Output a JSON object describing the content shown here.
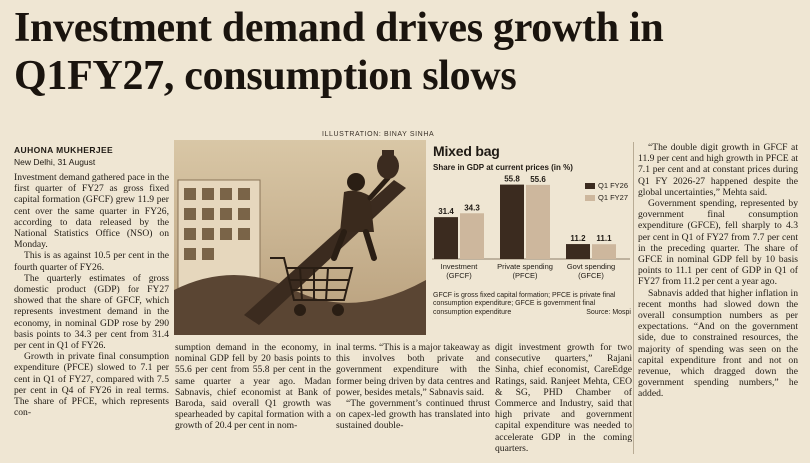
{
  "headline": "Investment demand drives growth in Q1FY27, consumption slows",
  "illustration_credit": "ILLUSTRATION: BINAY SINHA",
  "byline": {
    "author": "AUHONA MUKHERJEE",
    "dateline": "New Delhi, 31 August"
  },
  "columns": {
    "col1": [
      "Investment demand gathered pace in the first quarter of FY27 as gross fixed capital formation (GFCF) grew 11.9 per cent over the same quarter in FY26, according to data released by the National Statistics Office (NSO) on Monday.",
      "This is as against 10.5 per cent in the fourth quarter of FY26.",
      "The quarterly estimates of gross domestic product (GDP) for FY27 showed that the share of GFCF, which represents investment demand in the economy, in nominal GDP rose by 290 basis points to 34.3 per cent from 31.4 per cent in Q1 of FY26.",
      "Growth in private final consumption expenditure (PFCE) slowed to 7.1 per cent in Q1 of FY27, compared with 7.5 per cent in Q4 of FY26 in real terms. The share of PFCE, which represents con-"
    ],
    "col2": [
      "sumption demand in the economy, in nominal GDP fell by 20 basis points to 55.6 per cent from 55.8 per cent in the same quarter a year ago. Madan Sabnavis, chief economist at Bank of Baroda, said overall Q1 growth was spearheaded by capital formation with a growth of 20.4 per cent in nom-"
    ],
    "col3": [
      "inal terms. “This is a major takeaway as this involves both private and government expenditure with the former being driven by data centres and power, besides metals,” Sabnavis said.",
      "“The government’s continued thrust on capex-led growth has translated into sustained double-"
    ],
    "col4": [
      "digit investment growth for two consecutive quarters,” Rajani Sinha, chief economist, CareEdge Ratings, said. Ranjeet Mehta, CEO & SG, PHD Chamber of Commerce and Industry, said that high private and government capital expenditure was needed to accelerate GDP in the coming quarters."
    ],
    "col5": [
      "“The double digit growth in GFCF at 11.9 per cent and high growth in PFCE at 7.1 per cent and at constant prices during Q1 FY 2026-27 happened despite the global uncertainties,” Mehta said.",
      "Government spending, represented by government final consumption expenditure (GFCE), fell sharply to 4.3 per cent in Q1 of FY27 from 7.7 per cent in the preceding quarter. The share of GFCE in nominal GDP fell by 10 basis points to 11.1 per cent of GDP in Q1 of FY27 from 11.2 per cent a year ago.",
      "Sabnavis added that higher inflation in recent months had slowed down the overall consumption numbers as per expectations. “And on the government side, due to constrained resources, the majority of spending was seen on the capital expenditure front and not on revenue, which dragged down the government spending numbers,” he added."
    ]
  },
  "chart_data": {
    "type": "bar",
    "title": "Mixed bag",
    "subtitle": "Share in GDP at current prices (in %)",
    "categories": [
      "Investment (GFCF)",
      "Private spending (PFCE)",
      "Govt spending (GFCE)"
    ],
    "category_lines": [
      [
        "Investment",
        "(GFCF)"
      ],
      [
        "Private spending",
        "(PFCE)"
      ],
      [
        "Govt spending",
        "(GFCE)"
      ]
    ],
    "series": [
      {
        "name": "Q1 FY26",
        "values": [
          31.4,
          55.8,
          11.2
        ],
        "color": "#3b2b1f"
      },
      {
        "name": "Q1 FY27",
        "values": [
          34.3,
          55.6,
          11.1
        ],
        "color": "#cdb79d"
      }
    ],
    "ylim": [
      0,
      60
    ],
    "legend": "top-right",
    "note": "GFCF is gross fixed capital formation; PFCE is private final consumption expenditure; GFCE is government final consumption expenditure",
    "source": "Source: Mospi"
  }
}
